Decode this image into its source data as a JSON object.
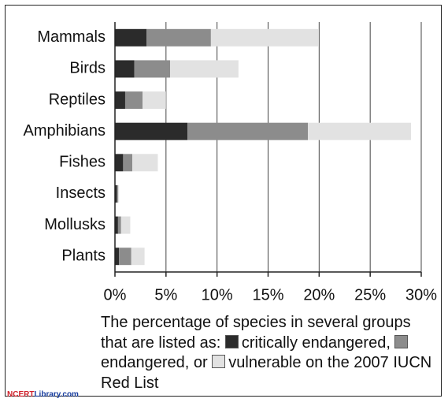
{
  "chart_data": {
    "type": "stacked-barh",
    "categories": [
      "Mammals",
      "Birds",
      "Reptiles",
      "Amphibians",
      "Fishes",
      "Insects",
      "Mollusks",
      "Plants"
    ],
    "series": [
      {
        "name": "critically endangered",
        "color": "#2b2b2b",
        "values": [
          3.1,
          1.9,
          1.0,
          7.1,
          0.8,
          0.2,
          0.3,
          0.4
        ]
      },
      {
        "name": "endangered",
        "color": "#8c8c8c",
        "values": [
          6.3,
          3.5,
          1.7,
          11.8,
          0.9,
          0.1,
          0.3,
          1.2
        ]
      },
      {
        "name": "vulnerable",
        "color": "#e2e2e2",
        "values": [
          10.5,
          6.7,
          2.3,
          10.1,
          2.5,
          0.1,
          0.9,
          1.3
        ]
      }
    ],
    "xlim": [
      0,
      30
    ],
    "xticks": [
      {
        "value": 0,
        "label": "0%"
      },
      {
        "value": 5,
        "label": "5%"
      },
      {
        "value": 10,
        "label": "10%"
      },
      {
        "value": 15,
        "label": "15%"
      },
      {
        "value": 20,
        "label": "20%"
      },
      {
        "value": 25,
        "label": "25%"
      },
      {
        "value": 30,
        "label": "30%"
      }
    ],
    "grid": true,
    "caption": [
      "The percentage of species in several groups that are listed as:",
      ",",
      ", or",
      "on the 2007 IUCN Red List"
    ],
    "watermark": [
      "NCERT",
      "Library.com"
    ]
  }
}
